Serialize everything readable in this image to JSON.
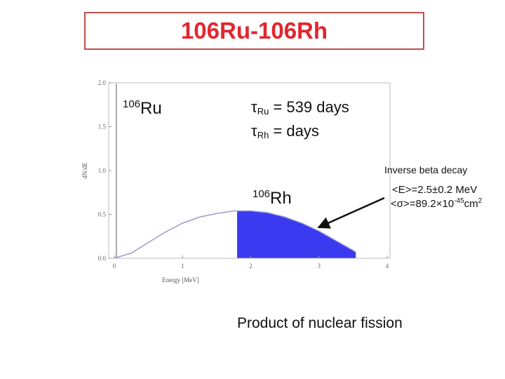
{
  "slide": {
    "title": "106Ru-106Rh",
    "ru_isotope": {
      "mass": "106",
      "symbol": "Ru"
    },
    "rh_isotope": {
      "mass": "106",
      "symbol": "Rh"
    },
    "tau_ru": {
      "tau": "τ",
      "sub": "Ru",
      "text": " = 539 days"
    },
    "tau_rh": {
      "tau": "τ",
      "sub": "Rh",
      "text": " =  days"
    },
    "ibd_label": "Inverse beta decay",
    "mean_energy": "<E>=2.5±0.2 MeV",
    "mean_xsec": {
      "text": "<σ>=89.2×10",
      "exp": "-45",
      "unit": "cm",
      "unit_exp": "2"
    },
    "footer": "Product of nuclear fission"
  },
  "colors": {
    "title": "#e3252d",
    "title_border": "#c0504d",
    "fill": "#3a3af0",
    "curve": "#9a9ad0",
    "arrow": "#111111"
  },
  "chart_data": {
    "type": "area",
    "xlabel": "Energy [MeV]",
    "ylabel": "dN/dE",
    "xlim": [
      0,
      4
    ],
    "ylim": [
      0,
      2.0
    ],
    "x_ticks": [
      0,
      1,
      2,
      3,
      4
    ],
    "y_ticks": [
      "0.0",
      "0.5",
      "1.0",
      "1.5",
      "2.0"
    ],
    "grid": false,
    "series": [
      {
        "x": [
          0,
          0.25,
          0.5,
          0.75,
          1.0,
          1.25,
          1.5,
          1.75,
          1.8,
          2.0,
          2.25,
          2.5,
          2.75,
          3.0,
          3.25,
          3.5,
          3.54
        ],
        "y": [
          0,
          0.06,
          0.18,
          0.3,
          0.4,
          0.47,
          0.51,
          0.54,
          0.54,
          0.54,
          0.52,
          0.47,
          0.4,
          0.31,
          0.2,
          0.09,
          0.07
        ]
      }
    ],
    "shaded_from_x": 1.8,
    "spike_x": 0.03
  }
}
